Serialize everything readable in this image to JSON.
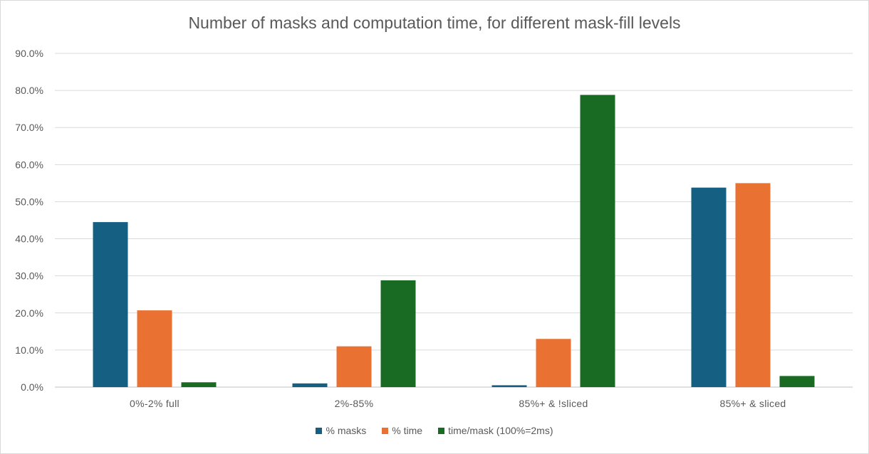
{
  "chart_data": {
    "type": "bar",
    "title": "Number of masks and computation time, for different mask-fill levels",
    "categories": [
      "0%-2% full",
      "2%-85%",
      "85%+ & !sliced",
      "85%+ & sliced"
    ],
    "series": [
      {
        "name": "% masks",
        "color": "#156082",
        "values": [
          44.5,
          1.0,
          0.5,
          53.8
        ]
      },
      {
        "name": "% time",
        "color": "#E97132",
        "values": [
          20.7,
          11.0,
          13.0,
          55.0
        ]
      },
      {
        "name": "time/mask (100%=2ms)",
        "color": "#196B24",
        "values": [
          1.3,
          28.8,
          78.8,
          3.0
        ]
      }
    ],
    "ylim": [
      0,
      90
    ],
    "yticks": [
      "0.0%",
      "10.0%",
      "20.0%",
      "30.0%",
      "40.0%",
      "50.0%",
      "60.0%",
      "70.0%",
      "80.0%",
      "90.0%"
    ],
    "grid": true,
    "legend_position": "bottom"
  }
}
